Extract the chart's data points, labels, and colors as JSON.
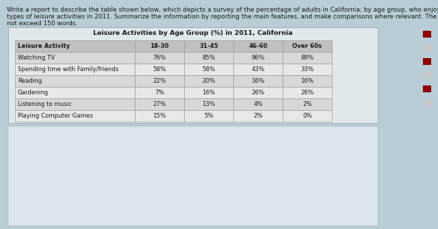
{
  "prompt_line1": "Write a report to describe the table shown below, which depicts a survey of the percentage of adults in California; by age group, who enjoyed different",
  "prompt_line2": "types of leisure activities in 2011. Summarize the information by reporting the main features, and make comparisons where relevant. The report should",
  "prompt_line3": "not exceed 150 words.",
  "table_title": "Leisure Activities by Age Group (%) in 2011, California",
  "col_headers": [
    "Leisure Activity",
    "18-30",
    "31-45",
    "46-60",
    "Over 60s"
  ],
  "rows": [
    [
      "Watching TV",
      "76%",
      "85%",
      "86%",
      "89%"
    ],
    [
      "Spending time with Family/friends",
      "58%",
      "58%",
      "43%",
      "33%"
    ],
    [
      "Reading",
      "22%",
      "20%",
      "16%",
      "16%"
    ],
    [
      "Gardening",
      "7%",
      "16%",
      "26%",
      "26%"
    ],
    [
      "Listening to music",
      "27%",
      "13%",
      "4%",
      "2%"
    ],
    [
      "Playing Computer Games",
      "15%",
      "5%",
      "2%",
      "0%"
    ]
  ],
  "header_bg": "#c0c0c0",
  "row_bg_alt1": "#d8d8d8",
  "row_bg_alt2": "#e8e8e8",
  "border_color": "#999999",
  "text_color": "#1a1a1a",
  "prompt_fontsize": 6.5,
  "title_fontsize": 6.8,
  "cell_fontsize": 6.2,
  "background_color": "#b8cdd6",
  "table_bg": "#f0f0f0",
  "white_box_color": "#d0dde3"
}
